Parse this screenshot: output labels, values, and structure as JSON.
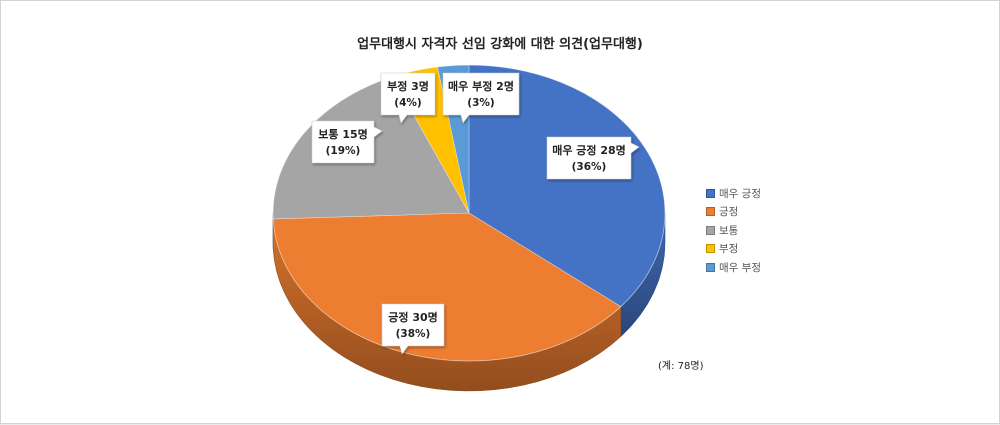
{
  "chart_data": {
    "type": "pie",
    "title": "업무대행시 자격자 선임 강화에 대한 의견(업무대행)",
    "total_note": "(계: 78명)",
    "slices": [
      {
        "name": "매우 긍정",
        "count": 28,
        "percent": 36,
        "label": "매우 긍정 28명",
        "pct_label": "(36%)",
        "color": "#4472C4"
      },
      {
        "name": "긍정",
        "count": 30,
        "percent": 38,
        "label": "긍정 30명",
        "pct_label": "(38%)",
        "color": "#ED7D31"
      },
      {
        "name": "보통",
        "count": 15,
        "percent": 19,
        "label": "보통 15명",
        "pct_label": "(19%)",
        "color": "#A5A5A5"
      },
      {
        "name": "부정",
        "count": 3,
        "percent": 4,
        "label": "부정 3명",
        "pct_label": "(4%)",
        "color": "#FFC000"
      },
      {
        "name": "매우 부정",
        "count": 2,
        "percent": 3,
        "label": "매우 부정 2명",
        "pct_label": "(3%)",
        "color": "#5B9BD5"
      }
    ],
    "legend": [
      "매우 긍정",
      "긍정",
      "보통",
      "부정",
      "매우 부정"
    ],
    "legend_position": "right"
  }
}
